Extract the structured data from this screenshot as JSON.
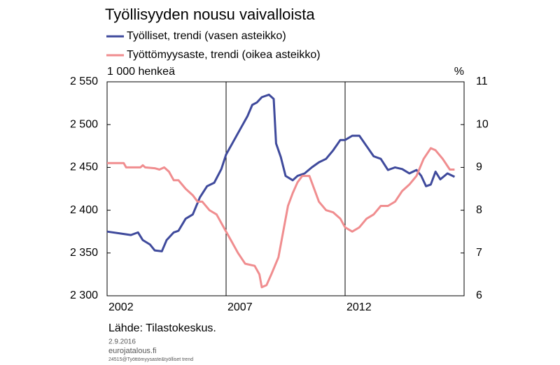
{
  "chart_data": {
    "type": "line",
    "title": "Työllisyyden nousu vaivalloista",
    "y_label": "1 000 henkeä",
    "y2_label": "%",
    "source": "Lähde:  Tilastokeskus.",
    "date": "2.9.2016",
    "site": "eurojatalous.fi",
    "file_note": "24515@Työttömyysaste&työlliset trend",
    "xlim": [
      2002,
      2017
    ],
    "xticks": [
      2002,
      2007,
      2012
    ],
    "ylim": [
      2300,
      2550
    ],
    "yticks": [
      {
        "value": 2300,
        "label": "2 300"
      },
      {
        "value": 2350,
        "label": "2 350"
      },
      {
        "value": 2400,
        "label": "2 400"
      },
      {
        "value": 2450,
        "label": "2 450"
      },
      {
        "value": 2500,
        "label": "2 500"
      },
      {
        "value": 2550,
        "label": "2 550"
      }
    ],
    "y2lim": [
      6,
      11
    ],
    "y2ticks": [
      6,
      7,
      8,
      9,
      10,
      11
    ],
    "grid": "x",
    "series": [
      {
        "name": "Työlliset, trendi (vasen asteikko)",
        "color": "#3f4a9c",
        "x": [
          2002.0,
          2002.5,
          2003.0,
          2003.3,
          2003.5,
          2003.8,
          2004.0,
          2004.3,
          2004.5,
          2004.8,
          2005.0,
          2005.3,
          2005.6,
          2005.9,
          2006.2,
          2006.5,
          2006.8,
          2007.0,
          2007.3,
          2007.6,
          2007.9,
          2008.1,
          2008.3,
          2008.5,
          2008.8,
          2009.0,
          2009.1,
          2009.3,
          2009.5,
          2009.8,
          2010.0,
          2010.3,
          2010.6,
          2010.9,
          2011.2,
          2011.5,
          2011.8,
          2012.0,
          2012.3,
          2012.6,
          2012.9,
          2013.2,
          2013.5,
          2013.8,
          2014.1,
          2014.4,
          2014.7,
          2015.0,
          2015.2,
          2015.4,
          2015.6,
          2015.8,
          2016.0,
          2016.3,
          2016.6
        ],
        "values": [
          2375,
          2373,
          2371,
          2374,
          2365,
          2360,
          2353,
          2352,
          2365,
          2374,
          2376,
          2390,
          2395,
          2415,
          2428,
          2432,
          2448,
          2465,
          2480,
          2495,
          2510,
          2523,
          2526,
          2532,
          2535,
          2530,
          2478,
          2462,
          2440,
          2435,
          2440,
          2443,
          2450,
          2456,
          2460,
          2470,
          2482,
          2482,
          2487,
          2487,
          2475,
          2463,
          2460,
          2447,
          2450,
          2448,
          2443,
          2447,
          2440,
          2428,
          2430,
          2445,
          2436,
          2443,
          2439
        ]
      },
      {
        "name": "Työttömyysaste, trendi (oikea asteikko)",
        "color": "#f08d8f",
        "axis": "y2",
        "x": [
          2002.0,
          2002.7,
          2002.8,
          2003.4,
          2003.5,
          2003.6,
          2004.0,
          2004.2,
          2004.4,
          2004.6,
          2004.8,
          2005.0,
          2005.3,
          2005.6,
          2005.8,
          2006.0,
          2006.3,
          2006.6,
          2006.9,
          2007.2,
          2007.5,
          2007.8,
          2008.2,
          2008.4,
          2008.5,
          2008.7,
          2008.9,
          2009.2,
          2009.4,
          2009.6,
          2009.8,
          2010.0,
          2010.2,
          2010.5,
          2010.7,
          2010.9,
          2011.2,
          2011.5,
          2011.8,
          2012.0,
          2012.3,
          2012.6,
          2012.9,
          2013.2,
          2013.5,
          2013.8,
          2014.1,
          2014.4,
          2014.7,
          2015.0,
          2015.3,
          2015.6,
          2015.8,
          2016.1,
          2016.4,
          2016.6
        ],
        "values": [
          9.1,
          9.1,
          9.0,
          9.0,
          9.05,
          9.0,
          8.98,
          8.95,
          9.0,
          8.9,
          8.7,
          8.7,
          8.5,
          8.35,
          8.2,
          8.2,
          8.0,
          7.9,
          7.6,
          7.3,
          7.0,
          6.75,
          6.7,
          6.5,
          6.2,
          6.25,
          6.5,
          6.9,
          7.5,
          8.1,
          8.4,
          8.65,
          8.8,
          8.8,
          8.5,
          8.2,
          8.0,
          7.95,
          7.8,
          7.6,
          7.5,
          7.6,
          7.8,
          7.9,
          8.1,
          8.1,
          8.2,
          8.45,
          8.6,
          8.8,
          9.2,
          9.45,
          9.4,
          9.2,
          8.95,
          8.95
        ]
      }
    ]
  }
}
